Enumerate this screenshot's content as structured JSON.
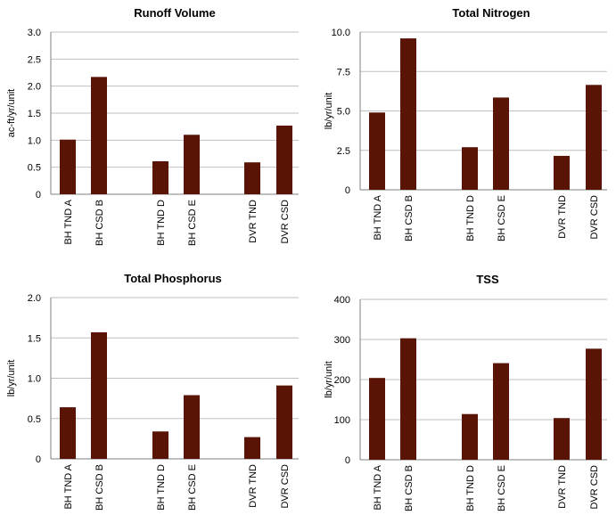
{
  "chart_data": [
    {
      "type": "bar",
      "title": "Runoff Volume",
      "ylabel": "ac-ft/yr/unit",
      "xlabel": "",
      "categories": [
        "BH TND A",
        "BH CSD B",
        "BH TND D",
        "BH CSD E",
        "DVR TND",
        "DVR CSD"
      ],
      "values": [
        1.01,
        2.17,
        0.61,
        1.1,
        0.59,
        1.27
      ],
      "ylim": [
        0,
        3.0
      ],
      "yticks": [
        "0",
        "0.5",
        "1.0",
        "1.5",
        "2.0",
        "2.5",
        "3.0"
      ],
      "grid": true,
      "color": "#5a1406"
    },
    {
      "type": "bar",
      "title": "Total Nitrogen",
      "ylabel": "lb/yr/unit",
      "xlabel": "",
      "categories": [
        "BH TND A",
        "BH CSD B",
        "BH TND D",
        "BH CSD E",
        "DVR TND",
        "DVR CSD"
      ],
      "values": [
        4.9,
        9.6,
        2.7,
        5.85,
        2.15,
        6.65
      ],
      "ylim": [
        0,
        10.0
      ],
      "yticks": [
        "0",
        "2.5",
        "5.0",
        "7.5",
        "10.0"
      ],
      "grid": true,
      "color": "#5a1406"
    },
    {
      "type": "bar",
      "title": "Total Phosphorus",
      "ylabel": "lb/yr/unit",
      "xlabel": "",
      "categories": [
        "BH TND A",
        "BH CSD B",
        "BH TND D",
        "BH CSD E",
        "DVR TND",
        "DVR CSD"
      ],
      "values": [
        0.64,
        1.57,
        0.34,
        0.79,
        0.27,
        0.91
      ],
      "ylim": [
        0,
        2.0
      ],
      "yticks": [
        "0",
        "0.5",
        "1.0",
        "1.5",
        "2.0"
      ],
      "grid": true,
      "color": "#5a1406"
    },
    {
      "type": "bar",
      "title": "TSS",
      "ylabel": "lb/yr/unit",
      "xlabel": "",
      "categories": [
        "BH TND A",
        "BH CSD B",
        "BH TND D",
        "BH CSD E",
        "DVR TND",
        "DVR CSD"
      ],
      "values": [
        204,
        303,
        114,
        241,
        104,
        277
      ],
      "ylim": [
        0,
        400
      ],
      "yticks": [
        "0",
        "100",
        "200",
        "300",
        "400"
      ],
      "grid": true,
      "color": "#5a1406"
    }
  ]
}
